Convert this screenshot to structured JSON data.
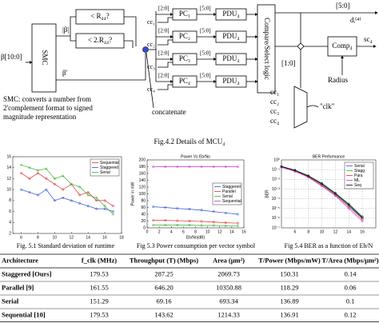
{
  "diagram": {
    "input": "β[10:0]",
    "smc": "SMC",
    "abs": "|β|",
    "prime": "β'",
    "cmp": [
      "< R₄₄?",
      "< 2.R₄₄?"
    ],
    "note": [
      "SMC: converts a number from",
      "2'complement format to signed",
      "magnitude representation"
    ],
    "concat": "concatenate",
    "bits_in": [
      "[2:0]",
      "[2:0]",
      "[2:0]",
      "[2:0]"
    ],
    "pc": [
      "PC₁",
      "PC₂",
      "PC₃",
      "PC₄"
    ],
    "cc_in": [
      "cc₁",
      "cc₂",
      "cc₃",
      "cc₄"
    ],
    "bits_mid": [
      "[5:0]",
      "[5:0]",
      "[5:0]",
      "[5:0]"
    ],
    "pdu": [
      "PDU₄",
      "PDU₄",
      "PDU₄",
      "PDU₄"
    ],
    "select": "Compare/Select logic",
    "out_bits": "[5:0]",
    "d": "dᵢ⁽⁴⁾",
    "comp": "Comp₄",
    "sc": "sc₄",
    "radius": "Radius",
    "sel_bits": "[1:0]",
    "cc_mux": [
      "cc₁",
      "cc₂",
      "cc₃",
      "cc₄"
    ],
    "clk": "\"clk\"",
    "caption": "Fig.4.2 Details of MCU₄"
  },
  "chart_data": [
    {
      "type": "line",
      "caption": "Fig. 5.1 Standard deviation of runtime",
      "x": [
        6,
        7,
        8,
        9,
        10,
        11,
        12,
        13,
        14,
        15,
        16,
        17
      ],
      "series": [
        {
          "name": "Sequential",
          "color": "#e03030",
          "values": [
            13,
            12,
            13,
            12,
            11,
            10,
            11,
            9,
            9.5,
            8,
            8,
            7
          ]
        },
        {
          "name": "Staggered",
          "color": "#3050d0",
          "values": [
            10,
            9.5,
            9,
            10,
            8,
            8.5,
            8,
            7.5,
            7,
            6.5,
            6.5,
            6
          ]
        },
        {
          "name": "Serial",
          "color": "#30b030",
          "values": [
            14.5,
            14,
            13.5,
            13.8,
            12,
            12.5,
            11,
            10.5,
            9,
            8.5,
            7,
            5.5
          ]
        }
      ],
      "xlim": [
        5,
        18
      ],
      "xticks": [
        6,
        8,
        10,
        12,
        14,
        16,
        18
      ],
      "ylim": [
        2,
        16
      ],
      "yticks": [
        2,
        4,
        6,
        8,
        10,
        12,
        14,
        16
      ],
      "grid": false,
      "legend": "upper right"
    },
    {
      "type": "line",
      "title": "Power Vs Eb/No",
      "xlabel": "Eb/No(dB)",
      "ylabel": "Power in mW",
      "caption": "Fig 5.3 Power consumption per vector  symbol",
      "x": [
        1,
        3,
        5,
        7,
        9,
        11,
        13,
        15
      ],
      "series": [
        {
          "name": "Staggered",
          "color": "#3050d0",
          "values": [
            62,
            60,
            57,
            55,
            52,
            48,
            44,
            40
          ]
        },
        {
          "name": "Parallel",
          "color": "#e03030",
          "values": [
            22,
            22,
            21,
            20,
            19,
            17,
            15,
            14
          ]
        },
        {
          "name": "Serial",
          "color": "#30b030",
          "values": [
            8,
            8,
            8,
            8,
            7,
            7,
            6,
            6
          ]
        },
        {
          "name": "Sequential",
          "color": "#d030d0",
          "values": [
            180,
            180,
            180,
            180,
            180,
            180,
            180,
            180
          ]
        }
      ],
      "xlim": [
        0,
        16
      ],
      "xticks": [
        0,
        2,
        4,
        6,
        8,
        10,
        12,
        14,
        16
      ],
      "ylim": [
        0,
        200
      ],
      "yticks": [
        0,
        20,
        40,
        60,
        80,
        100,
        120,
        140,
        160,
        180,
        200
      ],
      "grid": false,
      "legend": "center right"
    },
    {
      "type": "line",
      "title": "BER Performance",
      "ylabel": "BER",
      "caption": "Fig 5.4 BER as a function of Eb/N",
      "x": [
        4,
        6,
        8,
        10,
        12,
        14,
        16
      ],
      "series": [
        {
          "name": "Serial",
          "color": "#3050d0",
          "values": [
            0.2,
            0.08,
            0.02,
            0.003,
            0.0003,
            2e-05,
            1e-06
          ]
        },
        {
          "name": "Stagg",
          "color": "#30b030",
          "values": [
            0.22,
            0.09,
            0.025,
            0.004,
            0.0004,
            3e-05,
            1.5e-06
          ]
        },
        {
          "name": "Para",
          "color": "#e03030",
          "values": [
            0.18,
            0.07,
            0.018,
            0.0025,
            0.00025,
            1.5e-05,
            8e-07
          ]
        },
        {
          "name": "ML",
          "color": "#d030d0",
          "values": [
            0.17,
            0.065,
            0.016,
            0.002,
            0.0002,
            1e-05,
            5e-07
          ]
        },
        {
          "name": "Seq",
          "color": "#000000",
          "values": [
            0.21,
            0.085,
            0.022,
            0.0035,
            0.00035,
            2.5e-05,
            1.2e-06
          ]
        }
      ],
      "xlim": [
        4,
        18
      ],
      "xticks": [
        6,
        8,
        10,
        12,
        14,
        16
      ],
      "ylim": [
        1e-07,
        1
      ],
      "log": true,
      "yticks": [
        {
          "value": 1,
          "label": "10⁰"
        },
        {
          "value": 0.1,
          "label": "10⁻¹"
        },
        {
          "value": 0.01,
          "label": "10⁻²"
        },
        {
          "value": 0.001,
          "label": "10⁻³"
        },
        {
          "value": 0.0001,
          "label": "10⁻⁴"
        },
        {
          "value": 1e-05,
          "label": "10⁻⁵"
        },
        {
          "value": 1e-06,
          "label": "10⁻⁶"
        },
        {
          "value": 1e-07,
          "label": "10⁻⁷"
        }
      ],
      "grid": true,
      "legend": "upper right"
    }
  ],
  "table": {
    "header": [
      "Architecture",
      "f_clk (MHz)",
      "Throughput (T) (Mbps)",
      "Area (μm²)",
      "T/Power (Mbps/mW)",
      "T/Area (Mbps/μm²)"
    ],
    "rows": [
      [
        "Staggered [Ours]",
        "179.53",
        "287.25",
        "2069.73",
        "150.31",
        "0.14"
      ],
      [
        "Parallel [9]",
        "161.55",
        "646.20",
        "10350.88",
        "118.29",
        "0.06"
      ],
      [
        "Serial",
        "151.29",
        "69.16",
        "693.34",
        "136.89",
        "0.1"
      ],
      [
        "Sequential [10]",
        "179.53",
        "143.62",
        "1214.33",
        "136.91",
        "0.12"
      ]
    ]
  }
}
